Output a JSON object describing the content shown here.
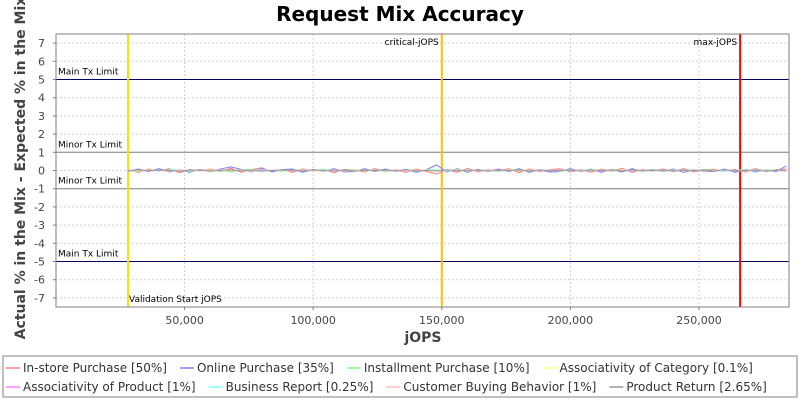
{
  "chart_data": {
    "type": "line",
    "title": "Request Mix Accuracy",
    "xlabel": "jOPS",
    "ylabel": "Actual % in the Mix - Expected % in the Mix",
    "xlim": [
      0,
      285000
    ],
    "ylim": [
      -7.5,
      7.5
    ],
    "x_ticks": [
      50000,
      100000,
      150000,
      200000,
      250000
    ],
    "x_tick_labels": [
      "50,000",
      "100,000",
      "150,000",
      "200,000",
      "250,000"
    ],
    "y_ticks": [
      7,
      6,
      5,
      4,
      3,
      2,
      1,
      0,
      -1,
      -2,
      -3,
      -4,
      -5,
      -6,
      -7
    ],
    "y_tick_labels": [
      "7",
      "6",
      "5",
      "4",
      "3",
      "2",
      "1",
      "0",
      "-1",
      "-2",
      "-3",
      "-4",
      "-5",
      "-6",
      "-7"
    ],
    "grid": true,
    "legend_position": "bottom",
    "x": [
      28000,
      32000,
      36000,
      40000,
      44000,
      48000,
      52000,
      56000,
      60000,
      64000,
      68000,
      72000,
      76000,
      80000,
      84000,
      88000,
      92000,
      96000,
      100000,
      104000,
      108000,
      112000,
      116000,
      120000,
      124000,
      128000,
      132000,
      136000,
      140000,
      144000,
      148000,
      152000,
      156000,
      160000,
      164000,
      168000,
      172000,
      176000,
      180000,
      184000,
      188000,
      192000,
      196000,
      200000,
      204000,
      208000,
      212000,
      216000,
      220000,
      224000,
      228000,
      232000,
      236000,
      240000,
      244000,
      248000,
      252000,
      256000,
      260000,
      264000,
      268000,
      272000,
      276000,
      280000,
      284000
    ],
    "series": [
      {
        "name": "In-store Purchase [50%]",
        "color": "#ff7f7f",
        "values": [
          0.05,
          -0.1,
          0.08,
          -0.05,
          0.1,
          -0.12,
          0.06,
          -0.04,
          0.08,
          -0.06,
          0.12,
          -0.1,
          0.05,
          0.15,
          -0.08,
          0.06,
          -0.1,
          0.09,
          -0.05,
          0.07,
          -0.12,
          0.06,
          0.04,
          -0.08,
          0.1,
          -0.06,
          0.05,
          -0.1,
          0.08,
          -0.05,
          -0.2,
          0.05,
          -0.1,
          0.12,
          -0.08,
          0.06,
          -0.05,
          0.1,
          -0.12,
          0.08,
          -0.06,
          0.05,
          0.1,
          -0.08,
          0.06,
          -0.1,
          0.08,
          -0.05,
          0.12,
          -0.1,
          0.06,
          -0.04,
          0.08,
          -0.06,
          0.1,
          -0.08,
          0.05,
          0.07,
          -0.05,
          0.06,
          -0.08,
          0.1,
          -0.06,
          0.05,
          0.08
        ]
      },
      {
        "name": "Online Purchase [35%]",
        "color": "#7f7fff",
        "values": [
          -0.05,
          0.08,
          -0.06,
          0.1,
          -0.08,
          0.05,
          -0.1,
          0.06,
          -0.05,
          0.08,
          0.2,
          0.06,
          -0.08,
          0.1,
          -0.06,
          0.05,
          0.08,
          -0.1,
          0.06,
          -0.05,
          0.1,
          -0.08,
          -0.05,
          0.1,
          -0.06,
          0.08,
          -0.05,
          0.06,
          -0.1,
          0.05,
          0.3,
          -0.08,
          0.1,
          -0.1,
          0.06,
          -0.05,
          0.08,
          -0.06,
          0.1,
          -0.1,
          0.05,
          -0.08,
          -0.06,
          0.1,
          -0.05,
          0.08,
          -0.1,
          0.06,
          -0.08,
          0.1,
          -0.05,
          0.06,
          -0.06,
          0.08,
          -0.1,
          0.05,
          -0.06,
          -0.05,
          0.08,
          -0.1,
          0.06,
          -0.08,
          0.05,
          -0.06,
          0.25
        ]
      },
      {
        "name": "Installment Purchase [10%]",
        "color": "#7fff7f",
        "values": [
          0.02,
          -0.06,
          0.04,
          -0.03,
          0.05,
          0.03,
          -0.05,
          0.04,
          -0.06,
          0.02,
          -0.08,
          0.04,
          0.06,
          -0.04,
          0.03,
          -0.05,
          0.02,
          0.04,
          -0.03,
          0.06,
          -0.04,
          0.03,
          0.05,
          -0.02,
          0.04,
          -0.06,
          0.03,
          0.02,
          -0.04,
          0.05,
          0.04,
          -0.03,
          0.06,
          -0.05,
          0.02,
          0.04,
          -0.06,
          0.03,
          0.05,
          -0.04,
          0.02,
          0.03,
          -0.05,
          0.04,
          -0.02,
          0.06,
          -0.03,
          0.05,
          0.02,
          -0.04,
          0.03,
          0.05,
          -0.06,
          0.02,
          0.04,
          -0.03,
          0.06,
          0.02,
          -0.04,
          0.03,
          0.05,
          -0.02,
          0.04,
          0.03,
          -0.05
        ]
      },
      {
        "name": "Associativity of Category [0.1%]",
        "color": "#ffff7f",
        "values": [
          0.01,
          -0.01,
          0.02,
          0.0,
          -0.02,
          0.01,
          0.0,
          -0.01,
          0.02,
          -0.01,
          0.01,
          0.0,
          -0.02,
          0.01,
          0.02,
          -0.01,
          0.0,
          0.01,
          -0.02,
          0.01,
          0.0,
          -0.01,
          0.02,
          0.01,
          -0.01,
          0.0,
          0.02,
          -0.02,
          0.01,
          0.0,
          0.02,
          -0.01,
          0.01,
          0.0,
          -0.02,
          0.02,
          0.01,
          -0.01,
          0.0,
          0.01,
          -0.02,
          0.01,
          0.0,
          0.02,
          -0.01,
          0.01,
          0.0,
          -0.02,
          0.01,
          0.02,
          -0.01,
          0.0,
          0.01,
          -0.02,
          0.01,
          0.0,
          -0.01,
          0.02,
          0.01,
          -0.01,
          0.0,
          0.02,
          -0.02,
          0.01,
          0.0
        ]
      },
      {
        "name": "Associativity of Product [1%]",
        "color": "#ff7fff",
        "values": [
          0.03,
          0.0,
          -0.03,
          0.02,
          0.01,
          -0.02,
          0.03,
          0.0,
          -0.02,
          0.03,
          -0.01,
          0.02,
          0.0,
          -0.03,
          0.02,
          0.01,
          -0.02,
          0.0,
          0.03,
          -0.01,
          0.02,
          0.0,
          -0.03,
          0.02,
          0.01,
          -0.02,
          0.03,
          0.0,
          -0.01,
          0.02,
          0.0,
          -0.03,
          0.02,
          0.01,
          -0.02,
          0.0,
          0.03,
          -0.01,
          0.02,
          0.0,
          -0.03,
          0.02,
          0.01,
          -0.02,
          0.03,
          0.0,
          -0.01,
          0.02,
          0.0,
          -0.03,
          0.02,
          0.01,
          -0.02,
          0.0,
          0.03,
          -0.01,
          0.02,
          0.0,
          -0.03,
          0.02,
          0.01,
          -0.02,
          0.03,
          0.0,
          -0.01
        ]
      },
      {
        "name": "Business Report [0.25%]",
        "color": "#7fffff",
        "values": [
          -0.02,
          0.02,
          0.0,
          -0.03,
          0.03,
          0.01,
          -0.02,
          0.02,
          0.0,
          -0.03,
          0.02,
          0.01,
          -0.02,
          0.03,
          0.0,
          -0.01,
          0.02,
          -0.02,
          0.01,
          0.03,
          -0.03,
          0.0,
          0.02,
          -0.01,
          0.03,
          -0.02,
          0.0,
          0.02,
          -0.03,
          0.01,
          0.02,
          -0.02,
          0.0,
          0.03,
          -0.01,
          0.02,
          -0.03,
          0.0,
          0.02,
          -0.02,
          0.01,
          0.03,
          -0.03,
          0.0,
          0.02,
          -0.01,
          0.03,
          -0.02,
          0.0,
          0.02,
          -0.03,
          0.01,
          0.02,
          -0.02,
          0.0,
          0.03,
          -0.01,
          0.02,
          -0.03,
          0.0,
          0.02,
          -0.02,
          0.01,
          0.03,
          -0.03
        ]
      },
      {
        "name": "Customer Buying Behavior [1%]",
        "color": "#ffbfbf",
        "values": [
          0.04,
          -0.02,
          0.03,
          0.0,
          -0.04,
          0.02,
          0.03,
          -0.03,
          0.0,
          0.04,
          -0.02,
          0.03,
          -0.04,
          0.0,
          0.02,
          0.03,
          -0.03,
          0.04,
          0.0,
          -0.02,
          0.03,
          -0.04,
          0.02,
          0.0,
          0.03,
          -0.03,
          0.04,
          -0.02,
          0.0,
          0.03,
          -0.04,
          0.02,
          0.03,
          -0.03,
          0.0,
          0.04,
          -0.02,
          0.03,
          -0.04,
          0.0,
          0.02,
          0.03,
          -0.03,
          0.04,
          0.0,
          -0.02,
          0.03,
          -0.04,
          0.02,
          0.0,
          0.03,
          -0.03,
          0.04,
          -0.02,
          0.0,
          0.03,
          -0.04,
          0.02,
          0.03,
          -0.03,
          0.0,
          0.04,
          -0.02,
          0.03,
          -0.04
        ]
      },
      {
        "name": "Product Return [2.65%]",
        "color": "#999999",
        "values": [
          -0.03,
          0.04,
          -0.02,
          0.03,
          0.0,
          -0.04,
          0.02,
          0.03,
          -0.03,
          0.0,
          0.04,
          -0.02,
          0.03,
          -0.04,
          0.0,
          0.02,
          0.03,
          -0.03,
          0.04,
          0.0,
          -0.02,
          0.03,
          -0.04,
          0.02,
          0.0,
          0.03,
          -0.03,
          0.04,
          -0.02,
          0.0,
          -0.03,
          0.04,
          -0.02,
          0.0,
          0.03,
          -0.04,
          0.02,
          0.0,
          0.03,
          -0.03,
          0.04,
          -0.02,
          0.0,
          0.03,
          -0.04,
          0.02,
          0.0,
          0.03,
          -0.03,
          0.04,
          -0.02,
          0.0,
          0.03,
          -0.04,
          0.02,
          0.0,
          0.03,
          -0.03,
          0.04,
          -0.02,
          0.0,
          0.03,
          -0.04,
          0.02,
          0.0
        ]
      }
    ],
    "horizontal_markers": [
      {
        "label": "Main Tx Limit",
        "y": 5,
        "color": "#000066",
        "label_side": "above"
      },
      {
        "label": "Minor Tx Limit",
        "y": 1,
        "color": "#808080",
        "label_side": "above"
      },
      {
        "label": "Minor Tx Limit",
        "y": -1,
        "color": "#808080",
        "label_side": "above"
      },
      {
        "label": "Main Tx Limit",
        "y": -5,
        "color": "#000066",
        "label_side": "above"
      }
    ],
    "vertical_markers": [
      {
        "label": "Validation Start jOPS",
        "x": 28000,
        "color": "#ffe000",
        "label_pos": "bottom"
      },
      {
        "label": "critical-jOPS",
        "x": 150000,
        "color": "#ffc000",
        "label_pos": "top"
      },
      {
        "label": "max-jOPS",
        "x": 266000,
        "color": "#ff0000",
        "label_pos": "top"
      }
    ]
  }
}
